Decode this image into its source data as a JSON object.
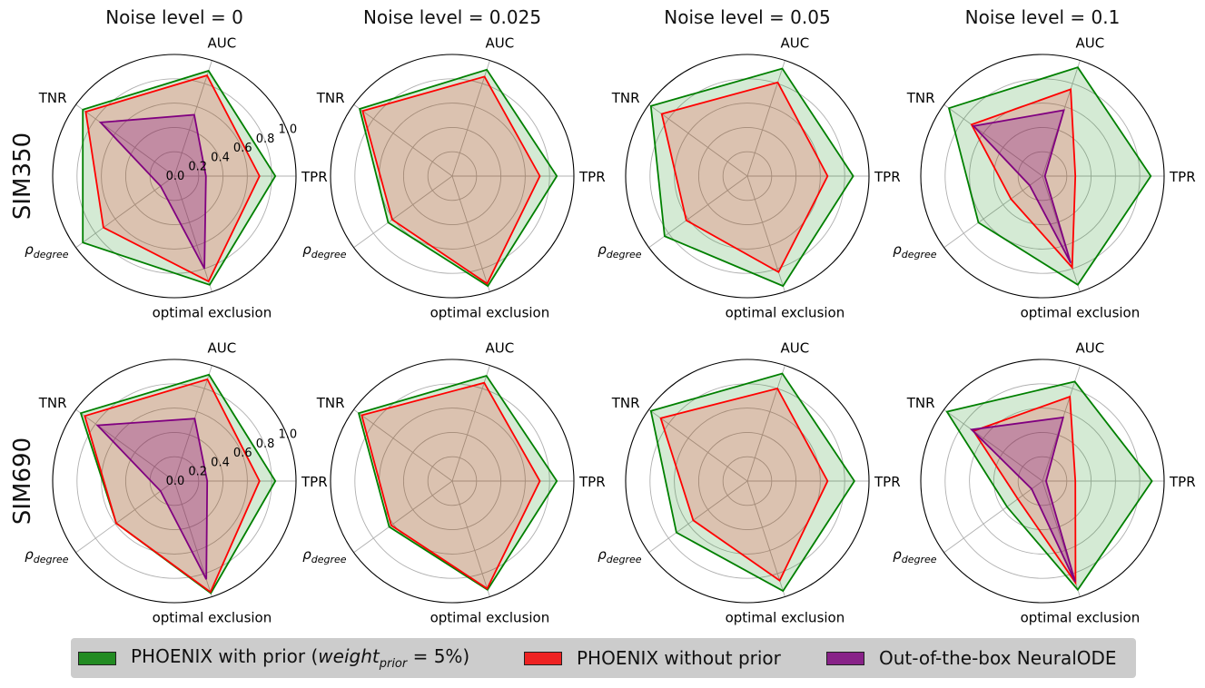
{
  "chart_data": [
    {
      "type": "radar",
      "row": "SIM350",
      "column": "Noise level = 0",
      "axes": [
        "TPR",
        "AUC",
        "TNR",
        "ρ_degree",
        "optimal exclusion"
      ],
      "rticks": [
        "0.0",
        "0.2",
        "0.4",
        "0.6",
        "0.8",
        "1.0"
      ],
      "rlim": [
        0,
        1
      ],
      "series": [
        {
          "name": "PHOENIX with prior (weight_prior = 5%)",
          "values": [
            0.83,
            0.91,
            0.93,
            0.93,
            0.94
          ]
        },
        {
          "name": "PHOENIX without prior",
          "values": [
            0.7,
            0.87,
            0.9,
            0.72,
            0.91
          ]
        },
        {
          "name": "Out-of-the-box NeuralODE",
          "values": [
            0.26,
            0.53,
            0.75,
            0.14,
            0.8
          ]
        }
      ]
    },
    {
      "type": "radar",
      "row": "SIM350",
      "column": "Noise level = 0.025",
      "axes": [
        "TPR",
        "AUC",
        "TNR",
        "ρ_degree",
        "optimal exclusion"
      ],
      "rlim": [
        0,
        1
      ],
      "series": [
        {
          "name": "PHOENIX with prior (weight_prior = 5%)",
          "values": [
            0.86,
            0.92,
            0.94,
            0.65,
            0.95
          ]
        },
        {
          "name": "PHOENIX without prior",
          "values": [
            0.72,
            0.86,
            0.91,
            0.61,
            0.93
          ]
        }
      ]
    },
    {
      "type": "radar",
      "row": "SIM350",
      "column": "Noise level = 0.05",
      "axes": [
        "TPR",
        "AUC",
        "TNR",
        "ρ_degree",
        "optimal exclusion"
      ],
      "rlim": [
        0,
        1
      ],
      "series": [
        {
          "name": "PHOENIX with prior (weight_prior = 5%)",
          "values": [
            0.87,
            0.93,
            0.98,
            0.84,
            0.95
          ]
        },
        {
          "name": "PHOENIX without prior",
          "values": [
            0.66,
            0.81,
            0.87,
            0.62,
            0.83
          ]
        }
      ]
    },
    {
      "type": "radar",
      "row": "SIM350",
      "column": "Noise level = 0.1",
      "axes": [
        "TPR",
        "AUC",
        "TNR",
        "ρ_degree",
        "optimal exclusion"
      ],
      "rlim": [
        0,
        1
      ],
      "series": [
        {
          "name": "PHOENIX with prior (weight_prior = 5%)",
          "values": [
            0.89,
            0.94,
            0.95,
            0.65,
            0.94
          ]
        },
        {
          "name": "PHOENIX without prior",
          "values": [
            0.27,
            0.75,
            0.72,
            0.32,
            0.79
          ]
        },
        {
          "name": "Out-of-the-box NeuralODE",
          "values": [
            0.02,
            0.57,
            0.7,
            0.13,
            0.75
          ]
        }
      ]
    },
    {
      "type": "radar",
      "row": "SIM690",
      "column": "Noise level = 0",
      "axes": [
        "TPR",
        "AUC",
        "TNR",
        "ρ_degree",
        "optimal exclusion"
      ],
      "rlim": [
        0,
        1
      ],
      "series": [
        {
          "name": "PHOENIX with prior (weight_prior = 5%)",
          "values": [
            0.83,
            0.92,
            0.95,
            0.59,
            0.97
          ]
        },
        {
          "name": "PHOENIX without prior",
          "values": [
            0.7,
            0.88,
            0.91,
            0.59,
            0.96
          ]
        },
        {
          "name": "Out-of-the-box NeuralODE",
          "values": [
            0.27,
            0.54,
            0.78,
            0.14,
            0.85
          ]
        }
      ]
    },
    {
      "type": "radar",
      "row": "SIM690",
      "column": "Noise level = 0.025",
      "axes": [
        "TPR",
        "AUC",
        "TNR",
        "ρ_degree",
        "optimal exclusion"
      ],
      "rlim": [
        0,
        1
      ],
      "series": [
        {
          "name": "PHOENIX with prior (weight_prior = 5%)",
          "values": [
            0.86,
            0.91,
            0.95,
            0.64,
            0.94
          ]
        },
        {
          "name": "PHOENIX without prior",
          "values": [
            0.72,
            0.85,
            0.92,
            0.62,
            0.93
          ]
        }
      ]
    },
    {
      "type": "radar",
      "row": "SIM690",
      "column": "Noise level = 0.05",
      "axes": [
        "TPR",
        "AUC",
        "TNR",
        "ρ_degree",
        "optimal exclusion"
      ],
      "rlim": [
        0,
        1
      ],
      "series": [
        {
          "name": "PHOENIX with prior (weight_prior = 5%)",
          "values": [
            0.88,
            0.93,
            0.98,
            0.72,
            0.95
          ]
        },
        {
          "name": "PHOENIX without prior",
          "values": [
            0.66,
            0.8,
            0.88,
            0.55,
            0.86
          ]
        }
      ]
    },
    {
      "type": "radar",
      "row": "SIM690",
      "column": "Noise level = 0.1",
      "axes": [
        "TPR",
        "AUC",
        "TNR",
        "ρ_degree",
        "optimal exclusion"
      ],
      "rlim": [
        0,
        1
      ],
      "series": [
        {
          "name": "PHOENIX with prior (weight_prior = 5%)",
          "values": [
            0.9,
            0.86,
            0.97,
            0.36,
            0.94
          ]
        },
        {
          "name": "PHOENIX without prior",
          "values": [
            0.27,
            0.73,
            0.7,
            0.25,
            0.88
          ]
        },
        {
          "name": "Out-of-the-box NeuralODE",
          "values": [
            0.03,
            0.55,
            0.72,
            0.11,
            0.87
          ]
        }
      ]
    }
  ],
  "columns": [
    "Noise level = 0",
    "Noise level = 0.025",
    "Noise level = 0.05",
    "Noise level = 0.1"
  ],
  "rows": [
    "SIM350",
    "SIM690"
  ],
  "axis_labels": {
    "tpr": "TPR",
    "auc": "AUC",
    "tnr": "TNR",
    "rho": "ρ",
    "rho_sub": "degree",
    "opt": "optimal exclusion"
  },
  "legend": {
    "with_prior": {
      "pre": "PHOENIX with prior (",
      "var": "weight",
      "sub": "prior",
      "post": " = 5%)",
      "color": "#228b22"
    },
    "without_prior": {
      "label": "PHOENIX without prior",
      "color": "#ee2222"
    },
    "neuralode": {
      "label": "Out-of-the-box NeuralODE",
      "color": "#882288"
    }
  },
  "colors": {
    "with_prior_line": "#008000",
    "with_prior_fill": "#008000",
    "without_prior_line": "#ff0000",
    "without_prior_fill": "#ff0000",
    "neuralode_line": "#800080",
    "neuralode_fill": "#800080"
  }
}
